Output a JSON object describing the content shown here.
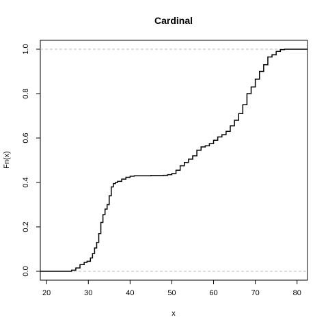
{
  "chart_data": {
    "type": "line",
    "subtype": "empirical-cdf-step",
    "title": "Cardinal",
    "xlabel": "x",
    "ylabel": "Fn(x)",
    "xlim": [
      18.5,
      82.5
    ],
    "ylim": [
      -0.04,
      1.04
    ],
    "x_ticks": [
      20,
      30,
      40,
      50,
      60,
      70,
      80
    ],
    "y_ticks": [
      0.0,
      0.2,
      0.4,
      0.6,
      0.8,
      1.0
    ],
    "x_tick_labels": [
      "20",
      "30",
      "40",
      "50",
      "60",
      "70",
      "80"
    ],
    "y_tick_labels": [
      "0.0",
      "0.2",
      "0.4",
      "0.6",
      "0.8",
      "1.0"
    ],
    "reference_lines_y": [
      0.0,
      1.0
    ],
    "grid": false,
    "series": [
      {
        "x": [
          18.5,
          25.0,
          26.0,
          27.0,
          28.0,
          29.0,
          29.7,
          30.5,
          31.0,
          31.5,
          32.0,
          32.5,
          33.0,
          33.5,
          34.0,
          34.5,
          35.0,
          35.5,
          36.0,
          36.5,
          37.0,
          38.0,
          39.0,
          40.0,
          41.0,
          43.0,
          45.0,
          48.0,
          49.0,
          50.0,
          51.0,
          52.0,
          53.0,
          54.0,
          55.0,
          56.0,
          57.0,
          58.0,
          59.0,
          60.0,
          61.0,
          62.0,
          63.0,
          64.0,
          65.0,
          66.0,
          67.0,
          68.0,
          69.0,
          70.0,
          71.0,
          72.0,
          73.0,
          74.0,
          75.0,
          76.0,
          77.0,
          80.0,
          82.5
        ],
        "y": [
          0.0,
          0.0,
          0.005,
          0.015,
          0.03,
          0.04,
          0.045,
          0.06,
          0.08,
          0.105,
          0.13,
          0.17,
          0.22,
          0.255,
          0.28,
          0.3,
          0.34,
          0.38,
          0.395,
          0.4,
          0.405,
          0.415,
          0.423,
          0.428,
          0.43,
          0.43,
          0.431,
          0.432,
          0.435,
          0.44,
          0.455,
          0.475,
          0.49,
          0.505,
          0.52,
          0.545,
          0.56,
          0.565,
          0.575,
          0.59,
          0.605,
          0.615,
          0.63,
          0.655,
          0.68,
          0.71,
          0.75,
          0.8,
          0.83,
          0.865,
          0.9,
          0.93,
          0.965,
          0.975,
          0.99,
          0.998,
          1.0,
          1.0,
          1.0
        ]
      }
    ]
  }
}
